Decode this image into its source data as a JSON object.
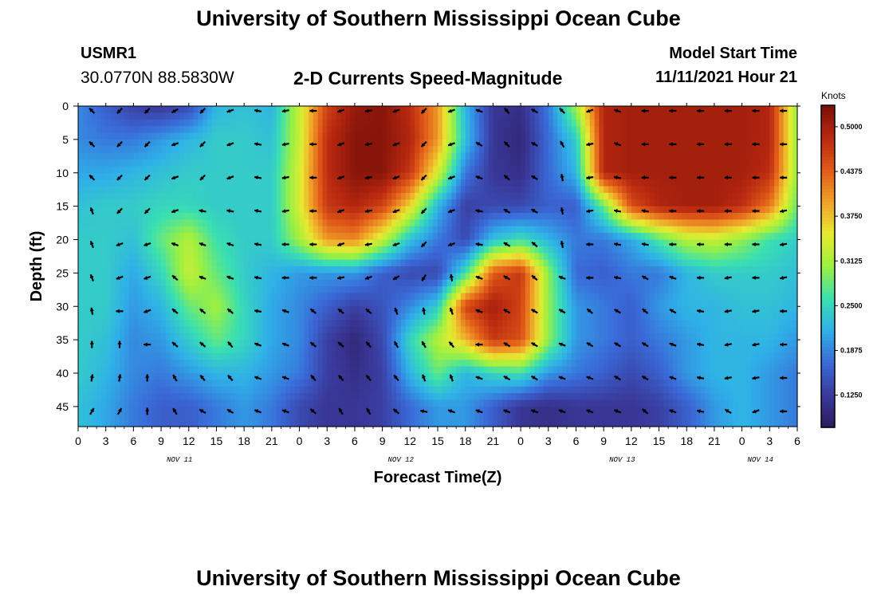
{
  "header": {
    "page_title": "University of Southern Mississippi Ocean Cube",
    "station_id": "USMR1",
    "station_coords": "30.0770N  88.5830W",
    "model_start_label": "Model Start Time",
    "model_start_value": "11/11/2021 Hour 21",
    "footer_title": "University of Southern Mississippi Ocean Cube"
  },
  "chart_data": {
    "type": "heatmap",
    "title": "2-D Currents Speed-Magnitude",
    "xlabel": "Forecast Time(Z)",
    "ylabel": "Depth (ft)",
    "x_range_hours": [
      0,
      78
    ],
    "y_range_ft": [
      0,
      48
    ],
    "y_reversed": true,
    "x_ticks": [
      "0",
      "3",
      "6",
      "9",
      "12",
      "15",
      "18",
      "21",
      "0",
      "3",
      "6",
      "9",
      "12",
      "15",
      "18",
      "21",
      "0",
      "3",
      "6",
      "9",
      "12",
      "15",
      "18",
      "21",
      "0",
      "3",
      "6"
    ],
    "y_ticks": [
      "0",
      "5",
      "10",
      "15",
      "20",
      "25",
      "30",
      "35",
      "40",
      "45"
    ],
    "date_labels": [
      {
        "label": "NOV 11",
        "hour": 11
      },
      {
        "label": "NOV 12",
        "hour": 35
      },
      {
        "label": "NOV 13",
        "hour": 59
      },
      {
        "label": "NOV 14",
        "hour": 74
      }
    ],
    "colorbar": {
      "units": "Knots",
      "min": 0.08,
      "max": 0.53,
      "tick_labels": [
        "0.5000",
        "0.4375",
        "0.3750",
        "0.3125",
        "0.2500",
        "0.1875",
        "0.1250"
      ],
      "tick_values": [
        0.5,
        0.4375,
        0.375,
        0.3125,
        0.25,
        0.1875,
        0.125
      ],
      "colors": [
        "#2d1a5e",
        "#3a3a9c",
        "#3a6ad8",
        "#2fb0e8",
        "#3ae0b0",
        "#9cf040",
        "#e6ea30",
        "#f0a028",
        "#e05a18",
        "#b82810",
        "#7a1008"
      ]
    },
    "speed_field": {
      "columns": [
        "0",
        "3",
        "6",
        "9",
        "12",
        "15",
        "18",
        "21",
        "0",
        "3",
        "6",
        "9",
        "12",
        "15",
        "18",
        "21",
        "0",
        "3",
        "6",
        "9",
        "12",
        "15",
        "18",
        "21",
        "0",
        "3",
        "6"
      ],
      "depths": [
        0,
        5,
        10,
        15,
        20,
        25,
        30,
        35,
        40,
        45
      ],
      "values": [
        [
          0.19,
          0.16,
          0.13,
          0.12,
          0.14,
          0.22,
          0.23,
          0.22,
          0.33,
          0.46,
          0.51,
          0.52,
          0.48,
          0.4,
          0.22,
          0.12,
          0.11,
          0.18,
          0.31,
          0.49,
          0.5,
          0.5,
          0.5,
          0.5,
          0.5,
          0.49,
          0.3
        ],
        [
          0.19,
          0.18,
          0.18,
          0.2,
          0.22,
          0.24,
          0.24,
          0.23,
          0.33,
          0.48,
          0.52,
          0.52,
          0.49,
          0.4,
          0.23,
          0.12,
          0.1,
          0.17,
          0.24,
          0.49,
          0.5,
          0.5,
          0.5,
          0.5,
          0.5,
          0.49,
          0.3
        ],
        [
          0.21,
          0.21,
          0.22,
          0.23,
          0.24,
          0.24,
          0.24,
          0.24,
          0.34,
          0.48,
          0.52,
          0.52,
          0.47,
          0.34,
          0.18,
          0.12,
          0.11,
          0.17,
          0.22,
          0.49,
          0.5,
          0.5,
          0.5,
          0.5,
          0.5,
          0.48,
          0.3
        ],
        [
          0.23,
          0.24,
          0.24,
          0.25,
          0.25,
          0.24,
          0.24,
          0.24,
          0.34,
          0.47,
          0.49,
          0.46,
          0.36,
          0.22,
          0.13,
          0.14,
          0.14,
          0.16,
          0.16,
          0.28,
          0.45,
          0.49,
          0.5,
          0.5,
          0.48,
          0.42,
          0.28
        ],
        [
          0.24,
          0.24,
          0.23,
          0.28,
          0.32,
          0.26,
          0.24,
          0.24,
          0.31,
          0.4,
          0.41,
          0.33,
          0.23,
          0.18,
          0.14,
          0.23,
          0.26,
          0.22,
          0.18,
          0.18,
          0.21,
          0.27,
          0.32,
          0.33,
          0.3,
          0.26,
          0.24
        ],
        [
          0.24,
          0.24,
          0.21,
          0.25,
          0.33,
          0.28,
          0.24,
          0.22,
          0.2,
          0.2,
          0.2,
          0.16,
          0.14,
          0.14,
          0.26,
          0.44,
          0.47,
          0.3,
          0.17,
          0.16,
          0.18,
          0.18,
          0.22,
          0.24,
          0.24,
          0.24,
          0.23
        ],
        [
          0.24,
          0.24,
          0.2,
          0.22,
          0.28,
          0.31,
          0.25,
          0.21,
          0.19,
          0.16,
          0.13,
          0.15,
          0.19,
          0.24,
          0.46,
          0.5,
          0.46,
          0.3,
          0.2,
          0.18,
          0.16,
          0.2,
          0.22,
          0.22,
          0.23,
          0.23,
          0.22
        ],
        [
          0.24,
          0.23,
          0.19,
          0.2,
          0.24,
          0.28,
          0.25,
          0.21,
          0.19,
          0.13,
          0.1,
          0.14,
          0.25,
          0.32,
          0.38,
          0.47,
          0.45,
          0.3,
          0.2,
          0.18,
          0.16,
          0.18,
          0.2,
          0.22,
          0.22,
          0.22,
          0.2
        ],
        [
          0.24,
          0.22,
          0.19,
          0.18,
          0.2,
          0.22,
          0.22,
          0.2,
          0.18,
          0.13,
          0.11,
          0.13,
          0.22,
          0.28,
          0.22,
          0.25,
          0.26,
          0.2,
          0.18,
          0.16,
          0.14,
          0.16,
          0.2,
          0.22,
          0.22,
          0.2,
          0.18
        ],
        [
          0.23,
          0.21,
          0.18,
          0.16,
          0.16,
          0.18,
          0.2,
          0.18,
          0.14,
          0.12,
          0.12,
          0.13,
          0.17,
          0.2,
          0.2,
          0.16,
          0.12,
          0.11,
          0.12,
          0.12,
          0.12,
          0.13,
          0.16,
          0.2,
          0.22,
          0.2,
          0.18
        ]
      ]
    },
    "vector_angles_deg": [
      [
        135,
        225,
        225,
        210,
        225,
        200,
        170,
        190,
        180,
        200,
        190,
        200,
        225,
        200,
        160,
        130,
        150,
        135,
        200,
        160,
        180,
        180,
        180,
        180,
        180,
        180,
        200
      ],
      [
        135,
        225,
        225,
        200,
        225,
        200,
        170,
        190,
        180,
        200,
        190,
        200,
        225,
        200,
        150,
        135,
        150,
        120,
        190,
        160,
        180,
        180,
        180,
        180,
        180,
        180,
        200
      ],
      [
        135,
        225,
        225,
        200,
        225,
        200,
        170,
        190,
        180,
        200,
        190,
        200,
        225,
        200,
        160,
        140,
        150,
        100,
        190,
        170,
        180,
        180,
        180,
        180,
        180,
        180,
        200
      ],
      [
        110,
        225,
        225,
        200,
        170,
        170,
        170,
        190,
        180,
        200,
        190,
        200,
        225,
        200,
        170,
        150,
        150,
        100,
        190,
        170,
        170,
        180,
        180,
        180,
        180,
        190,
        200
      ],
      [
        110,
        200,
        200,
        160,
        160,
        160,
        170,
        180,
        180,
        200,
        190,
        200,
        225,
        200,
        170,
        150,
        140,
        100,
        180,
        170,
        170,
        180,
        180,
        180,
        180,
        190,
        190
      ],
      [
        110,
        200,
        200,
        140,
        160,
        160,
        170,
        180,
        180,
        190,
        200,
        210,
        240,
        100,
        160,
        150,
        140,
        160,
        180,
        170,
        150,
        160,
        180,
        190,
        180,
        190,
        190
      ],
      [
        100,
        180,
        200,
        140,
        140,
        140,
        170,
        160,
        140,
        140,
        140,
        110,
        100,
        110,
        160,
        150,
        150,
        150,
        140,
        150,
        140,
        150,
        170,
        190,
        190,
        180,
        190
      ],
      [
        90,
        90,
        180,
        140,
        140,
        130,
        160,
        160,
        140,
        140,
        130,
        120,
        120,
        130,
        180,
        150,
        150,
        160,
        150,
        150,
        150,
        160,
        170,
        190,
        190,
        180,
        180
      ],
      [
        80,
        80,
        90,
        120,
        130,
        130,
        160,
        160,
        130,
        130,
        130,
        130,
        110,
        110,
        160,
        150,
        150,
        160,
        160,
        150,
        150,
        160,
        170,
        190,
        190,
        180,
        180
      ],
      [
        60,
        60,
        90,
        120,
        150,
        150,
        160,
        160,
        140,
        120,
        120,
        140,
        170,
        160,
        160,
        160,
        160,
        160,
        160,
        160,
        140,
        160,
        170,
        150,
        200,
        180,
        170
      ]
    ]
  }
}
